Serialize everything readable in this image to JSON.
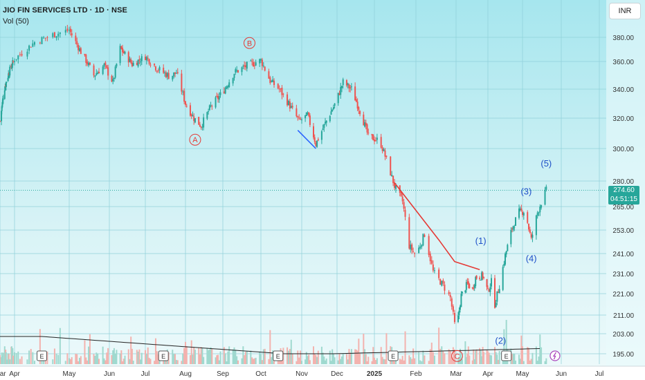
{
  "header": {
    "title": "JIO FIN SERVICES LTD · 1D · NSE",
    "volume_label": "Vol (50)"
  },
  "currency": "INR",
  "price_tag": {
    "price": "274.60",
    "countdown": "04:51:15"
  },
  "colors": {
    "up": "#26a69a",
    "down": "#ef5350",
    "vol_up": "#9fd9cf",
    "vol_down": "#f3b2ae",
    "red_line": "#e53935",
    "blue_line": "#2962ff",
    "wave_blue": "#1e50c8",
    "wave_red": "#e53935"
  },
  "chart_data": {
    "type": "candlestick",
    "title": "JIO FIN SERVICES LTD · 1D · NSE",
    "y_ticks": [
      380,
      360,
      340,
      320,
      300,
      280,
      265,
      253,
      241,
      231,
      221,
      211,
      203,
      195
    ],
    "y_tick_labels": [
      "380.00",
      "360.00",
      "340.00",
      "320.00",
      "300.00",
      "280.00",
      "265.00",
      "253.00",
      "241.00",
      "231.00",
      "221.00",
      "211.00",
      "203.00",
      "195.00"
    ],
    "x_labels": [
      "Mar",
      "Apr",
      "May",
      "Jun",
      "Jul",
      "Aug",
      "Sep",
      "Oct",
      "Nov",
      "Dec",
      "2025",
      "Feb",
      "Mar",
      "Apr",
      "May",
      "Jun",
      "Jul"
    ],
    "x_label_dates": [
      "2024-03-01",
      "2024-04-01",
      "2024-05-01",
      "2024-06-01",
      "2024-07-01",
      "2024-08-01",
      "2024-09-01",
      "2024-10-01",
      "2024-11-01",
      "2024-12-01",
      "2025-01-01",
      "2025-02-01",
      "2025-03-01",
      "2025-04-01",
      "2025-05-01",
      "2025-06-01",
      "2025-07-01"
    ],
    "last_price": 274.6,
    "price_path": [
      [
        "2024-03-01",
        318
      ],
      [
        "2024-03-10",
        340
      ],
      [
        "2024-03-20",
        352
      ],
      [
        "2024-04-01",
        362
      ],
      [
        "2024-04-12",
        376
      ],
      [
        "2024-04-22",
        382
      ],
      [
        "2024-05-01",
        386
      ],
      [
        "2024-05-10",
        368
      ],
      [
        "2024-05-20",
        350
      ],
      [
        "2024-05-28",
        357
      ],
      [
        "2024-06-04",
        345
      ],
      [
        "2024-06-10",
        371
      ],
      [
        "2024-06-20",
        358
      ],
      [
        "2024-07-01",
        364
      ],
      [
        "2024-07-10",
        355
      ],
      [
        "2024-07-20",
        349
      ],
      [
        "2024-07-25",
        352
      ],
      [
        "2024-08-01",
        330
      ],
      [
        "2024-08-08",
        320
      ],
      [
        "2024-08-14",
        315
      ],
      [
        "2024-08-22",
        328
      ],
      [
        "2024-09-01",
        338
      ],
      [
        "2024-09-10",
        352
      ],
      [
        "2024-09-20",
        357
      ],
      [
        "2024-10-01",
        361
      ],
      [
        "2024-10-08",
        346
      ],
      [
        "2024-10-15",
        340
      ],
      [
        "2024-10-22",
        330
      ],
      [
        "2024-10-30",
        318
      ],
      [
        "2024-11-06",
        322
      ],
      [
        "2024-11-13",
        303
      ],
      [
        "2024-11-20",
        315
      ],
      [
        "2024-11-30",
        331
      ],
      [
        "2024-12-06",
        345
      ],
      [
        "2024-12-13",
        340
      ],
      [
        "2024-12-20",
        325
      ],
      [
        "2024-12-27",
        308
      ],
      [
        "2025-01-05",
        305
      ],
      [
        "2025-01-10",
        293
      ],
      [
        "2025-01-16",
        277
      ],
      [
        "2025-01-22",
        268
      ],
      [
        "2025-01-27",
        245
      ],
      [
        "2025-02-01",
        240
      ],
      [
        "2025-02-07",
        251
      ],
      [
        "2025-02-13",
        232
      ],
      [
        "2025-02-20",
        225
      ],
      [
        "2025-02-25",
        219
      ],
      [
        "2025-03-01",
        203
      ],
      [
        "2025-03-06",
        220
      ],
      [
        "2025-03-12",
        226
      ],
      [
        "2025-03-17",
        223
      ],
      [
        "2025-03-20",
        229
      ],
      [
        "2025-03-27",
        230
      ],
      [
        "2025-04-01",
        222
      ],
      [
        "2025-04-04",
        227
      ],
      [
        "2025-04-07",
        216
      ],
      [
        "2025-04-11",
        225
      ],
      [
        "2025-04-16",
        240
      ],
      [
        "2025-04-22",
        254
      ],
      [
        "2025-04-28",
        262
      ],
      [
        "2025-05-03",
        263
      ],
      [
        "2025-05-08",
        248
      ],
      [
        "2025-05-13",
        262
      ],
      [
        "2025-05-20",
        274.6
      ]
    ],
    "lines": [
      {
        "color": "red",
        "points": [
          [
            "2025-01-16",
            279
          ],
          [
            "2025-02-17",
            248
          ],
          [
            "2025-02-28",
            237
          ],
          [
            "2025-03-24",
            233
          ]
        ]
      },
      {
        "color": "blue",
        "points": [
          [
            "2024-10-29",
            312
          ],
          [
            "2024-11-13",
            300
          ]
        ]
      }
    ],
    "annotations": [
      {
        "text": "A",
        "circled": true,
        "color": "red",
        "date": "2024-08-09",
        "price": 304
      },
      {
        "text": "B",
        "circled": true,
        "color": "red",
        "date": "2024-09-22",
        "price": 373
      },
      {
        "text": "C",
        "circled": true,
        "color": "red",
        "date": "2025-03-02",
        "price": 193
      },
      {
        "text": "(1)",
        "circled": false,
        "color": "blue",
        "date": "2025-03-25",
        "price": 246
      },
      {
        "text": "(2)",
        "circled": false,
        "color": "blue",
        "date": "2025-04-12",
        "price": 199
      },
      {
        "text": "(3)",
        "circled": false,
        "color": "blue",
        "date": "2025-05-04",
        "price": 272
      },
      {
        "text": "(4)",
        "circled": false,
        "color": "blue",
        "date": "2025-05-08",
        "price": 237
      },
      {
        "text": "(5)",
        "circled": false,
        "color": "blue",
        "date": "2025-05-20",
        "price": 289
      }
    ],
    "earnings_markers": [
      "2024-04-16",
      "2024-07-15",
      "2024-10-14",
      "2025-01-15",
      "2025-04-17"
    ],
    "lightning_marker": "2025-05-27"
  }
}
